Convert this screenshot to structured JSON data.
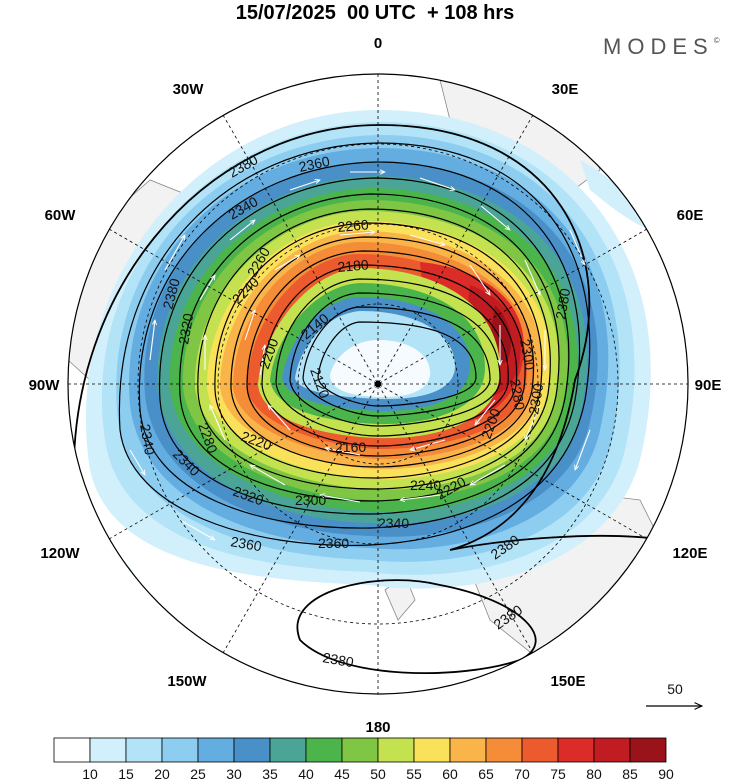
{
  "title": "15/07/2025  00 UTC  + 108 hrs",
  "brand": "MODES",
  "brand_mark": "©",
  "longitude_labels": {
    "lon_0": "0",
    "lon_30e": "30E",
    "lon_60e": "60E",
    "lon_90e": "90E",
    "lon_120e": "120E",
    "lon_150e": "150E",
    "lon_180": "180",
    "lon_150w": "150W",
    "lon_120w": "120W",
    "lon_90w": "90W",
    "lon_60w": "60W",
    "lon_30w": "30W"
  },
  "contour_labels": {
    "c2380_a": "2380",
    "c2360_a": "2360",
    "c2340_a": "2340",
    "c2260_a": "2260",
    "c2180_a": "2180",
    "c2140_a": "2140",
    "c2120_a": "2120",
    "c2160_a": "2160",
    "c2200_a": "2200",
    "c2240_a": "2240",
    "c2280_a": "2280",
    "c2300_a": "2300",
    "c2320_a": "2320",
    "c2320_b": "2320",
    "c2340_b": "2340",
    "c2340_c": "2340",
    "c2340_d": "2340",
    "c2360_b": "2360",
    "c2360_c": "2360",
    "c2380_b": "2380",
    "c2380_c": "2380",
    "c2380_d": "2380",
    "c2380_e": "2380",
    "c2240_b": "2240",
    "c2220_a": "2220",
    "c2280_b": "2280",
    "c2200_b": "2200",
    "c2300_b": "2300",
    "c2260_b": "2260",
    "c2220_b": "2220",
    "c2300_c": "2300"
  },
  "reference_vector": {
    "value": "50"
  },
  "colorbar": {
    "labels": [
      "10",
      "15",
      "20",
      "25",
      "30",
      "35",
      "40",
      "45",
      "50",
      "55",
      "60",
      "65",
      "70",
      "75",
      "80",
      "85",
      "90"
    ],
    "colors": [
      "#ffffff",
      "#d2f0fb",
      "#b3e3f7",
      "#8ccdf0",
      "#64ade0",
      "#4a90c8",
      "#4aa597",
      "#4bb54b",
      "#7fc645",
      "#c4e250",
      "#f9e15a",
      "#f9b54a",
      "#f48c38",
      "#ec5b2d",
      "#db2c27",
      "#c11c22",
      "#9b131a"
    ]
  },
  "colors": {
    "land": "#f2f2f2",
    "coast": "#888888",
    "contour": "#000000",
    "wind_vector": "#ffffff",
    "grid": "#000000"
  }
}
